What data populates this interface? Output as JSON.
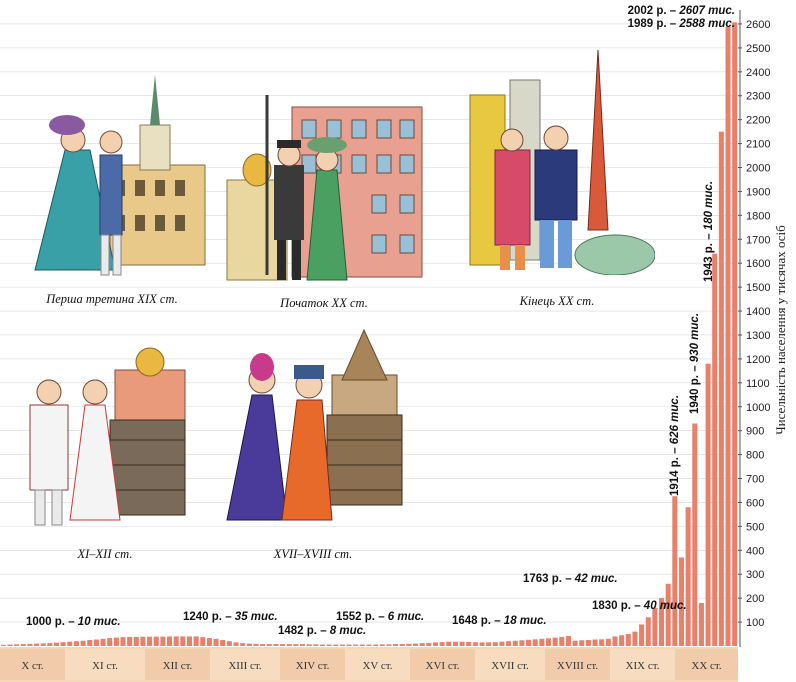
{
  "chart_data": {
    "type": "bar",
    "ylabel": "Чисельність населення у тисячах осіб",
    "ylim": [
      0,
      2650
    ],
    "yticks": [
      100,
      200,
      300,
      400,
      500,
      600,
      700,
      800,
      900,
      1000,
      1100,
      1200,
      1300,
      1400,
      1500,
      1600,
      1700,
      1800,
      1900,
      2000,
      2100,
      2200,
      2300,
      2400,
      2500,
      2600
    ],
    "grid": true,
    "bar_color": "#e8806a",
    "centuries": [
      "X ст.",
      "XI ст.",
      "XII ст.",
      "XIII ст.",
      "XIV ст.",
      "XV ст.",
      "XVI ст.",
      "XVII ст.",
      "XVIII ст.",
      "XIX ст.",
      "XX ст."
    ],
    "values": [
      5,
      6,
      7,
      8,
      9,
      10,
      11,
      12,
      14,
      16,
      18,
      20,
      22,
      25,
      27,
      30,
      33,
      35,
      37,
      38,
      38,
      39,
      39,
      39,
      39,
      40,
      40,
      40,
      40,
      40,
      37,
      33,
      30,
      25,
      20,
      15,
      12,
      10,
      9,
      8,
      8,
      8,
      8,
      8,
      8,
      8,
      7,
      7,
      6,
      6,
      6,
      6,
      6,
      6,
      6,
      6,
      6,
      7,
      7,
      8,
      8,
      9,
      10,
      12,
      13,
      15,
      16,
      18,
      18,
      18,
      17,
      16,
      15,
      15,
      16,
      18,
      20,
      22,
      24,
      26,
      28,
      30,
      32,
      35,
      38,
      42,
      22,
      24,
      25,
      27,
      28,
      30,
      40,
      45,
      50,
      60,
      90,
      120,
      160,
      200,
      260,
      626,
      370,
      580,
      930,
      180,
      1180,
      1640,
      2150,
      2588,
      2607
    ],
    "annotations": [
      {
        "year": "1000 р.",
        "value": "10 тис."
      },
      {
        "year": "1240 р.",
        "value": "35 тис."
      },
      {
        "year": "1482 р.",
        "value": "8 тис."
      },
      {
        "year": "1552 р.",
        "value": "6 тис."
      },
      {
        "year": "1648 р.",
        "value": "18 тис."
      },
      {
        "year": "1763 р.",
        "value": "42 тис."
      },
      {
        "year": "1830 р.",
        "value": "40 тис."
      },
      {
        "year": "1914 р.",
        "value": "626 тис."
      },
      {
        "year": "1940 р.",
        "value": "930 тис."
      },
      {
        "year": "1943 р.",
        "value": "180 тис."
      },
      {
        "year": "1989 р.",
        "value": "2588 тис."
      },
      {
        "year": "2002 р.",
        "value": "2607 тис."
      }
    ]
  },
  "illustrations": [
    {
      "caption": "Перша третина XIX ст.",
      "icon": "first-third-19th-century-figures-icon"
    },
    {
      "caption": "Початок XX ст.",
      "icon": "early-20th-century-figures-icon"
    },
    {
      "caption": "Кінець XX ст.",
      "icon": "late-20th-century-figures-icon"
    },
    {
      "caption": "XI–XII ст.",
      "icon": "11th-12th-century-figures-icon"
    },
    {
      "caption": "XVII–XVIII ст.",
      "icon": "17th-18th-century-figures-icon"
    }
  ]
}
